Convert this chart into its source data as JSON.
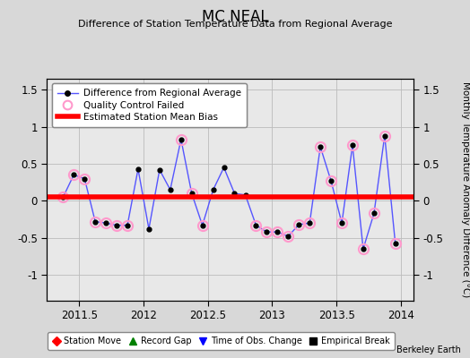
{
  "title": "MC NEAL",
  "subtitle": "Difference of Station Temperature Data from Regional Average",
  "ylabel_right": "Monthly Temperature Anomaly Difference (°C)",
  "credit": "Berkeley Earth",
  "xlim": [
    2011.25,
    2014.1
  ],
  "ylim": [
    -1.35,
    1.65
  ],
  "yticks": [
    -1.0,
    -0.5,
    0.0,
    0.5,
    1.0,
    1.5
  ],
  "xticks": [
    2011.5,
    2012.0,
    2012.5,
    2013.0,
    2013.5,
    2014.0
  ],
  "xtick_labels": [
    "2011.5",
    "2012",
    "2012.5",
    "2013",
    "2013.5",
    "2014"
  ],
  "bias_value": 0.05,
  "x_data": [
    2011.375,
    2011.458,
    2011.542,
    2011.625,
    2011.708,
    2011.792,
    2011.875,
    2011.958,
    2012.042,
    2012.125,
    2012.208,
    2012.292,
    2012.375,
    2012.458,
    2012.542,
    2012.625,
    2012.708,
    2012.792,
    2012.875,
    2012.958,
    2013.042,
    2013.125,
    2013.208,
    2013.292,
    2013.375,
    2013.458,
    2013.542,
    2013.625,
    2013.708,
    2013.792,
    2013.875,
    2013.958
  ],
  "y_data": [
    0.05,
    0.35,
    0.3,
    -0.28,
    -0.3,
    -0.33,
    -0.33,
    0.43,
    -0.38,
    0.42,
    0.15,
    0.83,
    0.1,
    -0.33,
    0.15,
    0.45,
    0.1,
    0.08,
    -0.33,
    -0.42,
    -0.42,
    -0.48,
    -0.32,
    -0.3,
    0.73,
    0.27,
    -0.3,
    0.75,
    -0.65,
    -0.17,
    0.88,
    -0.58
  ],
  "qc_failed_indices": [
    0,
    1,
    2,
    3,
    4,
    5,
    6,
    11,
    12,
    13,
    18,
    19,
    20,
    21,
    22,
    23,
    24,
    25,
    26,
    27,
    28,
    29,
    30,
    31
  ],
  "line_color": "#5555ff",
  "marker_color": "black",
  "qc_color": "#ff99cc",
  "bias_color": "red",
  "plot_bg": "#e8e8e8",
  "fig_bg": "#d8d8d8",
  "grid_color": "#bbbbbb",
  "legend1_items": [
    {
      "label": "Difference from Regional Average"
    },
    {
      "label": "Quality Control Failed"
    },
    {
      "label": "Estimated Station Mean Bias"
    }
  ],
  "legend2_items": [
    {
      "label": "Station Move",
      "marker": "D",
      "color": "red"
    },
    {
      "label": "Record Gap",
      "marker": "^",
      "color": "green"
    },
    {
      "label": "Time of Obs. Change",
      "marker": "v",
      "color": "blue"
    },
    {
      "label": "Empirical Break",
      "marker": "s",
      "color": "black"
    }
  ]
}
